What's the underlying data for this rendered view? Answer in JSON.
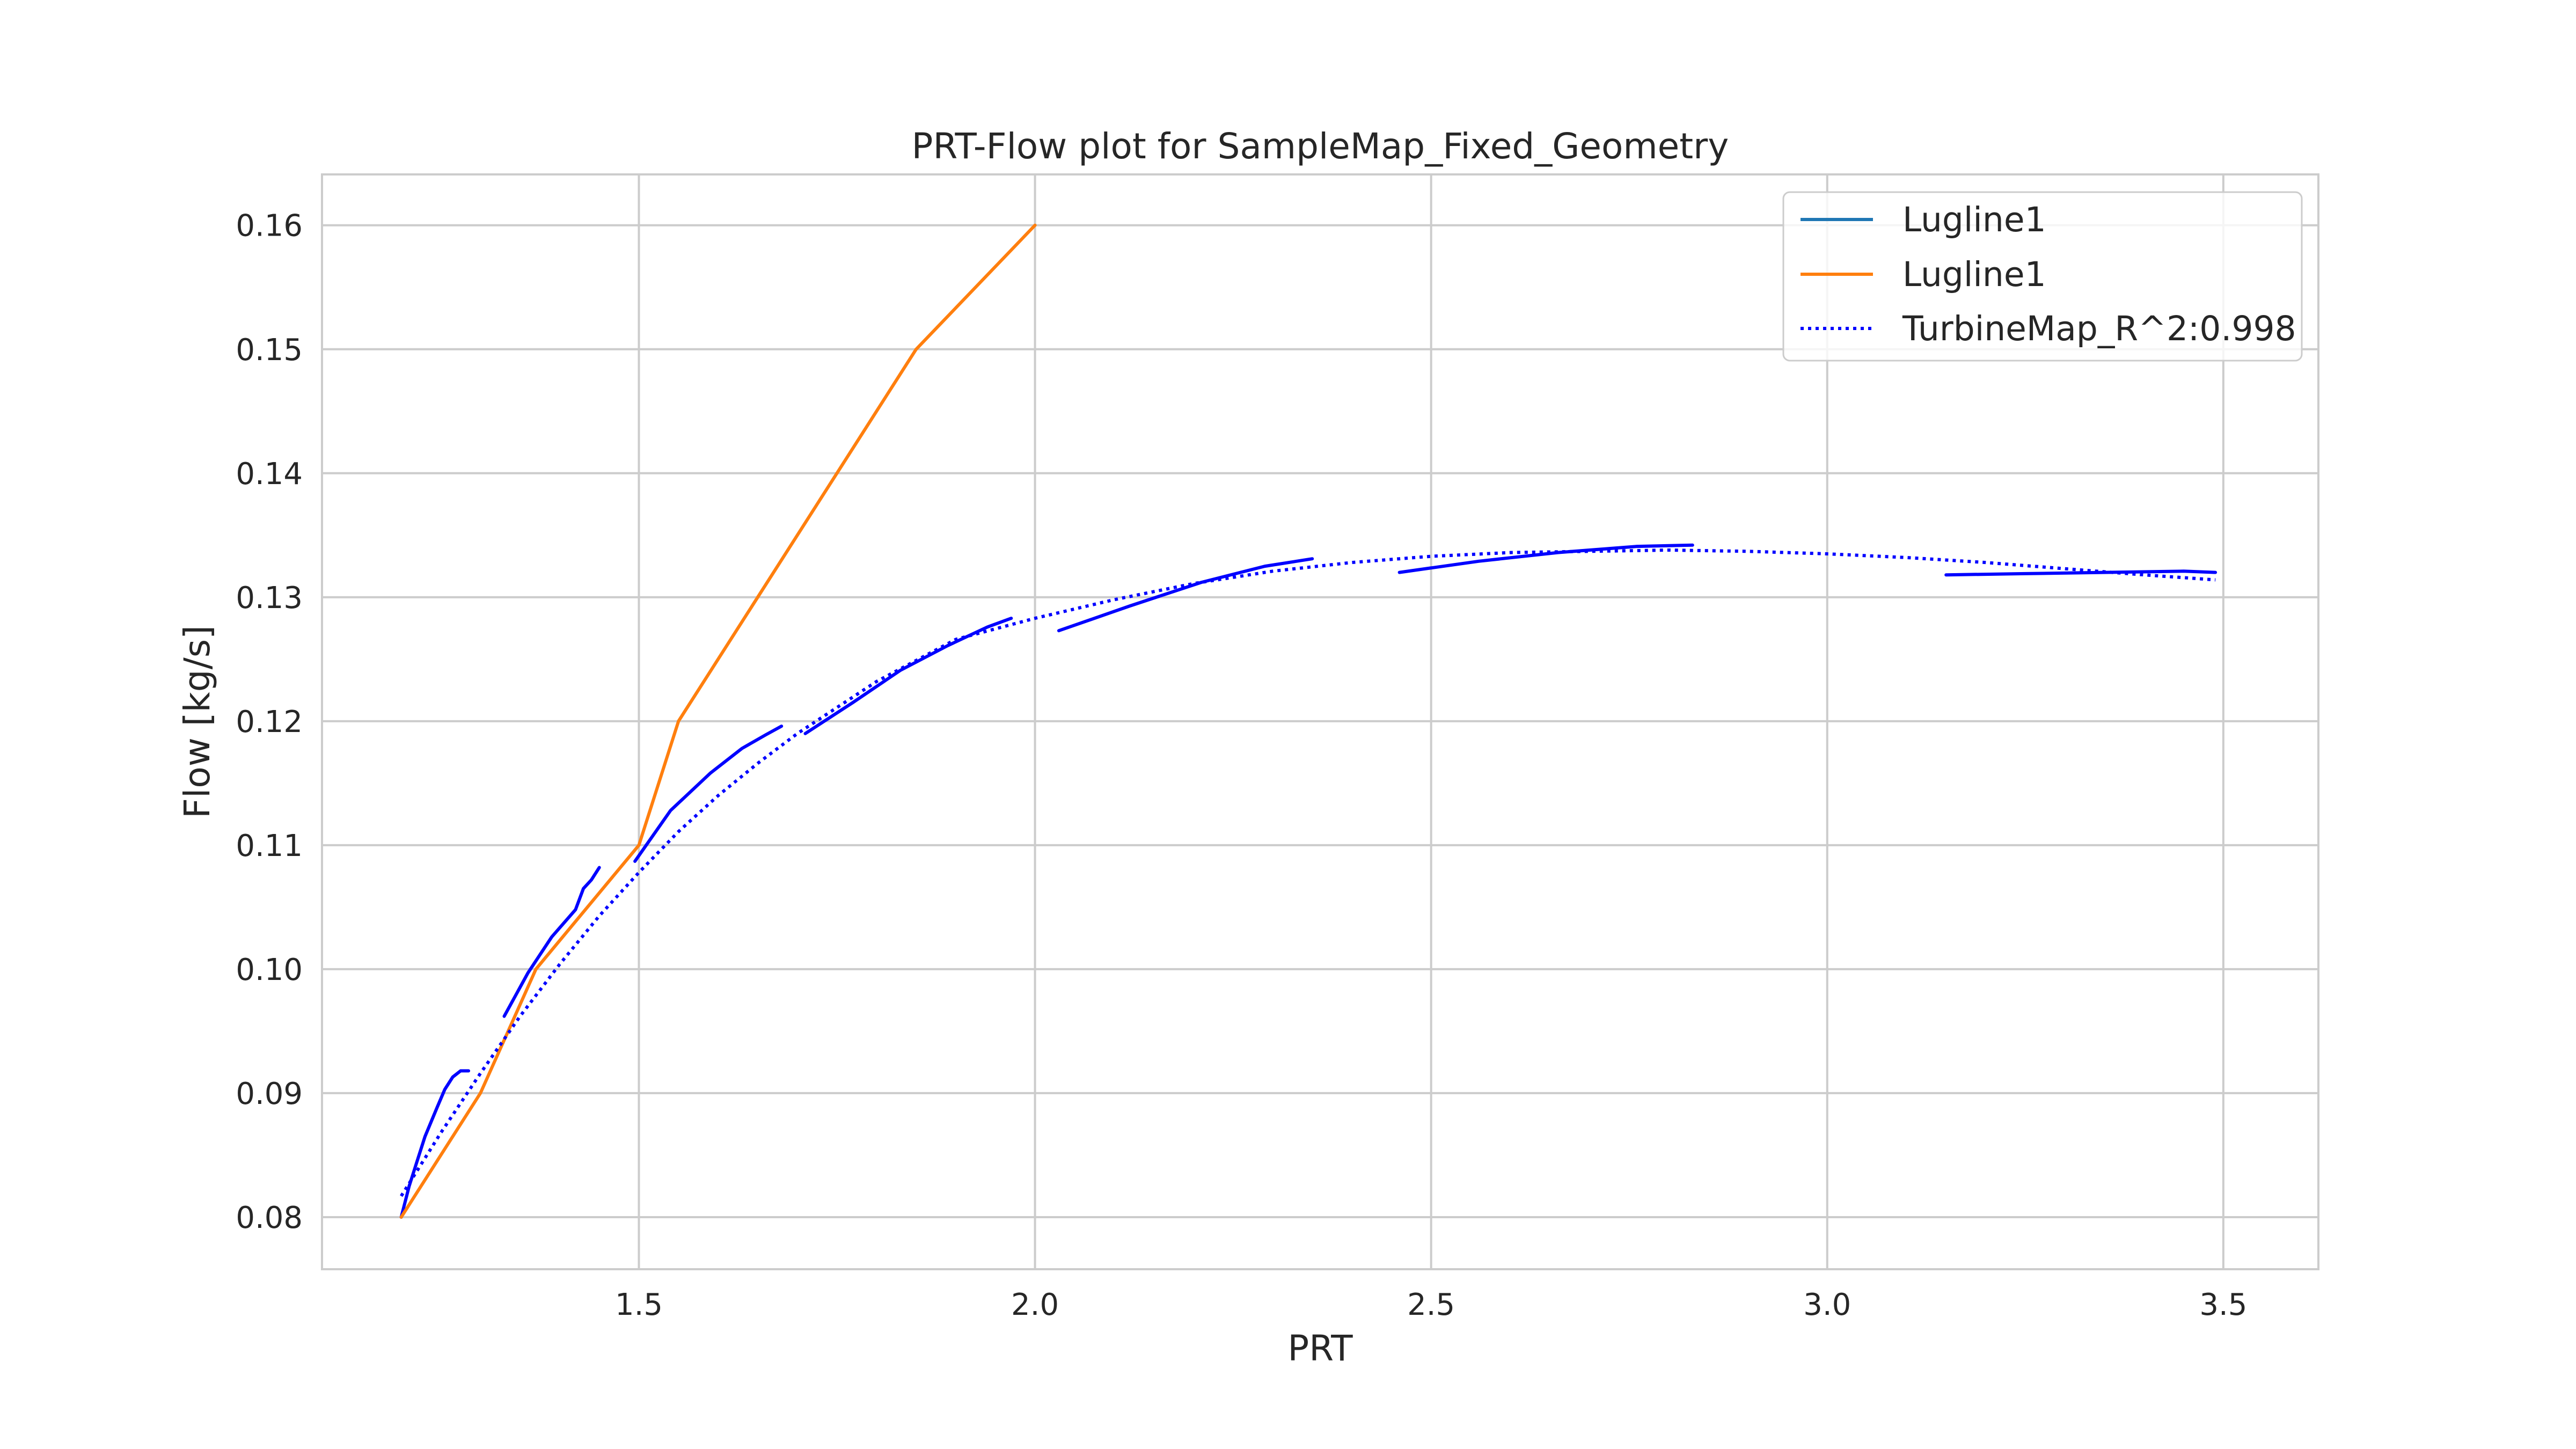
{
  "chart_data": {
    "type": "line",
    "title": "PRT-Flow plot for SampleMap_Fixed_Geometry",
    "xlabel": "PRT",
    "ylabel": "Flow [kg/s]",
    "xlim": [
      1.1,
      3.62
    ],
    "ylim": [
      0.0758,
      0.1641
    ],
    "xticks": [
      1.5,
      2.0,
      2.5,
      3.0,
      3.5
    ],
    "xtick_labels": [
      "1.5",
      "2.0",
      "2.5",
      "3.0",
      "3.5"
    ],
    "yticks": [
      0.08,
      0.09,
      0.1,
      0.11,
      0.12,
      0.13,
      0.14,
      0.15,
      0.16
    ],
    "ytick_labels": [
      "0.08",
      "0.09",
      "0.10",
      "0.11",
      "0.12",
      "0.13",
      "0.14",
      "0.15",
      "0.16"
    ],
    "grid": true,
    "legend_position": "top-right",
    "legend": [
      {
        "label": "Lugline1",
        "color": "#1f77b4",
        "style": "solid"
      },
      {
        "label": "Lugline1",
        "color": "#ff7f0e",
        "style": "solid"
      },
      {
        "label": "TurbineMap_R^2:0.998",
        "color": "#0000ff",
        "style": "dotted"
      }
    ],
    "series": [
      {
        "color": "#0000ff",
        "style": "solid",
        "segments": [
          {
            "x": [
              1.2,
              1.21,
              1.22,
              1.23,
              1.245,
              1.255,
              1.265,
              1.275,
              1.285
            ],
            "y": [
              0.08,
              0.0825,
              0.0845,
              0.0865,
              0.0888,
              0.0903,
              0.0913,
              0.0918,
              0.0918
            ]
          },
          {
            "x": [
              1.33,
              1.36,
              1.39,
              1.42,
              1.43,
              1.44,
              1.45
            ],
            "y": [
              0.0962,
              0.0997,
              0.1026,
              0.1048,
              0.1065,
              0.1072,
              0.1082
            ]
          },
          {
            "x": [
              1.495,
              1.54,
              1.59,
              1.63,
              1.66,
              1.68
            ],
            "y": [
              0.1087,
              0.1128,
              0.1158,
              0.1178,
              0.1189,
              0.1196
            ]
          },
          {
            "x": [
              1.71,
              1.77,
              1.83,
              1.89,
              1.94,
              1.97
            ],
            "y": [
              0.119,
              0.1215,
              0.1241,
              0.1261,
              0.1276,
              0.1283
            ]
          },
          {
            "x": [
              2.03,
              2.12,
              2.21,
              2.29,
              2.35
            ],
            "y": [
              0.1273,
              0.1293,
              0.1312,
              0.1325,
              0.1331
            ]
          },
          {
            "x": [
              2.46,
              2.56,
              2.66,
              2.76,
              2.83
            ],
            "y": [
              0.132,
              0.1329,
              0.1336,
              0.1341,
              0.1342
            ]
          },
          {
            "x": [
              3.15,
              3.25,
              3.35,
              3.45,
              3.49
            ],
            "y": [
              0.1318,
              0.1319,
              0.132,
              0.1321,
              0.132
            ]
          }
        ]
      },
      {
        "color": "#ff7f0e",
        "style": "solid",
        "segments": [
          {
            "x": [
              1.2,
              1.3,
              1.37,
              1.5,
              1.55,
              1.85,
              2.0
            ],
            "y": [
              0.08,
              0.09,
              0.1,
              0.11,
              0.12,
              0.15,
              0.16
            ]
          }
        ]
      },
      {
        "name": "TurbineMap_R^2:0.998",
        "color": "#0000ff",
        "style": "dotted",
        "segments": [
          {
            "x": [
              1.2,
              1.25,
              1.3,
              1.35,
              1.4,
              1.45,
              1.5,
              1.55,
              1.6,
              1.65,
              1.7,
              1.8,
              1.9,
              2.0,
              2.1,
              2.2,
              2.3,
              2.4,
              2.5,
              2.6,
              2.7,
              2.8,
              2.9,
              3.0,
              3.1,
              3.2,
              3.3,
              3.4,
              3.49
            ],
            "y": [
              0.0817,
              0.0868,
              0.0916,
              0.0962,
              0.1004,
              0.1043,
              0.1078,
              0.1111,
              0.114,
              0.1166,
              0.119,
              0.1232,
              0.1266,
              0.1283,
              0.1298,
              0.1311,
              0.1321,
              0.1328,
              0.1333,
              0.1336,
              0.1337,
              0.1338,
              0.1337,
              0.1335,
              0.1332,
              0.1328,
              0.1323,
              0.1318,
              0.1314
            ]
          }
        ]
      }
    ]
  }
}
